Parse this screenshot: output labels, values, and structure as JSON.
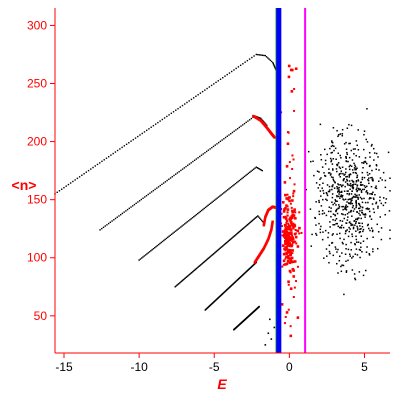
{
  "chart_data": {
    "type": "scatter",
    "xlabel": "E",
    "ylabel": "<n>",
    "xlim": [
      -15.6,
      6.7
    ],
    "ylim": [
      18,
      315
    ],
    "x_ticks": [
      -15,
      -10,
      -5,
      0,
      5
    ],
    "x_tick_labels": [
      "-15",
      "-10",
      "-5",
      "0",
      "5"
    ],
    "y_ticks": [
      50,
      100,
      150,
      200,
      250,
      300
    ],
    "y_tick_labels": [
      "50",
      "100",
      "150",
      "200",
      "250",
      "300"
    ],
    "grid": false,
    "colors": {
      "axis": "#ff0000",
      "black_series": "#000000",
      "red_series": "#ff0000",
      "blue_line": "#0000ff",
      "green_line": "#00a000",
      "magenta_line": "#ff00ff"
    },
    "vertical_lines": [
      {
        "x": -0.85,
        "color": "#00a000"
      },
      {
        "x": -0.7,
        "color": "#0000ff"
      },
      {
        "x": 1.05,
        "color": "#ff00ff"
      }
    ],
    "black_branches": [
      {
        "x0": -15.6,
        "y0": 155,
        "x1": -2.2,
        "y1": 275,
        "tail": [
          [
            -1.6,
            274
          ],
          [
            -1.1,
            268
          ],
          [
            -0.9,
            262
          ]
        ]
      },
      {
        "x0": -12.6,
        "y0": 124,
        "x1": -2.3,
        "y1": 222,
        "tail": [
          [
            -1.9,
            220
          ],
          [
            -1.5,
            214
          ]
        ]
      },
      {
        "x0": -10.0,
        "y0": 98,
        "x1": -2.2,
        "y1": 178,
        "tail": [
          [
            -1.8,
            175
          ]
        ]
      },
      {
        "x0": -7.6,
        "y0": 75,
        "x1": -2.1,
        "y1": 136,
        "tail": [
          [
            -1.7,
            130
          ]
        ]
      },
      {
        "x0": -5.6,
        "y0": 55,
        "x1": -2.2,
        "y1": 96
      },
      {
        "x0": -3.7,
        "y0": 38,
        "x1": -2.0,
        "y1": 58
      }
    ],
    "red_curves": [
      {
        "points": [
          [
            -2.4,
            222
          ],
          [
            -1.9,
            218
          ],
          [
            -1.5,
            212
          ],
          [
            -1.2,
            207
          ],
          [
            -0.95,
            203
          ]
        ]
      },
      {
        "points": [
          [
            -1.7,
            128
          ],
          [
            -1.6,
            135
          ],
          [
            -1.4,
            141
          ],
          [
            -1.1,
            144
          ],
          [
            -0.9,
            143
          ]
        ]
      },
      {
        "points": [
          [
            -2.3,
            96
          ],
          [
            -2.0,
            102
          ],
          [
            -1.7,
            108
          ],
          [
            -1.4,
            116
          ],
          [
            -1.2,
            124
          ],
          [
            -1.1,
            132
          ]
        ]
      }
    ],
    "red_cluster": {
      "x_range": [
        -1.6,
        1.0
      ],
      "y_range": [
        28,
        270
      ],
      "center": [
        0.0,
        120
      ],
      "count": 260
    },
    "black_cloud": {
      "x_range": [
        0.9,
        6.7
      ],
      "y_range": [
        60,
        315
      ],
      "center": [
        4.0,
        150
      ],
      "count": 650
    },
    "black_sparse_points": [
      [
        -1.2,
        30
      ],
      [
        -1.4,
        35
      ],
      [
        -1.6,
        25
      ],
      [
        -1.0,
        40
      ],
      [
        -1.3,
        47
      ]
    ]
  }
}
